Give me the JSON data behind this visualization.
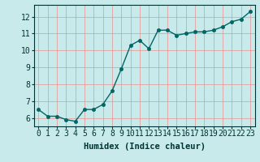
{
  "x": [
    0,
    1,
    2,
    3,
    4,
    5,
    6,
    7,
    8,
    9,
    10,
    11,
    12,
    13,
    14,
    15,
    16,
    17,
    18,
    19,
    20,
    21,
    22,
    23
  ],
  "y": [
    6.5,
    6.1,
    6.1,
    5.9,
    5.8,
    6.5,
    6.5,
    6.8,
    7.6,
    8.9,
    10.3,
    10.6,
    10.1,
    11.2,
    11.2,
    10.9,
    11.0,
    11.1,
    11.1,
    11.2,
    11.4,
    11.7,
    11.85,
    12.3
  ],
  "line_color": "#006666",
  "marker_color": "#006666",
  "bg_color": "#c8eaea",
  "grid_color": "#ee8888",
  "xlabel": "Humidex (Indice chaleur)",
  "xlim": [
    -0.5,
    23.5
  ],
  "ylim": [
    5.5,
    12.7
  ],
  "yticks": [
    6,
    7,
    8,
    9,
    10,
    11,
    12
  ],
  "xticks": [
    0,
    1,
    2,
    3,
    4,
    5,
    6,
    7,
    8,
    9,
    10,
    11,
    12,
    13,
    14,
    15,
    16,
    17,
    18,
    19,
    20,
    21,
    22,
    23
  ],
  "font_color": "#003333",
  "xlabel_fontsize": 7.5,
  "tick_fontsize": 7,
  "linewidth": 1.0,
  "markersize": 3.0
}
